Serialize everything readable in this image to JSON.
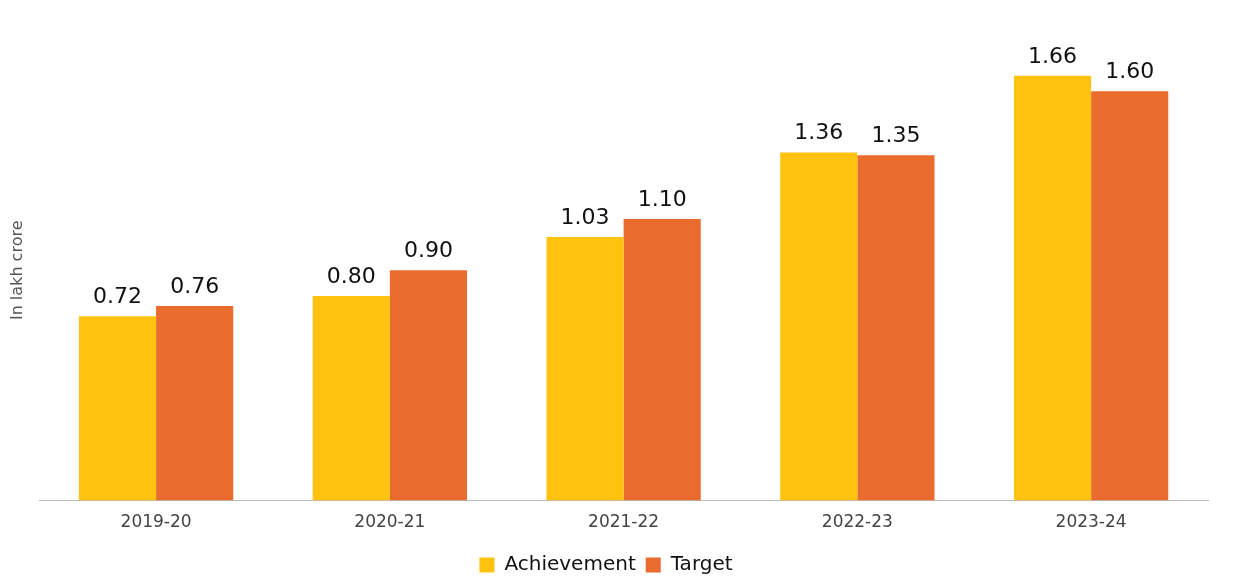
{
  "chart_data": {
    "type": "bar",
    "ylabel": "In lakh crore",
    "categories": [
      "2019-20",
      "2020-21",
      "2021-22",
      "2022-23",
      "2023-24"
    ],
    "series": [
      {
        "name": "Achievement",
        "color": "#ffc20e",
        "values": [
          0.72,
          0.8,
          1.03,
          1.36,
          1.66
        ],
        "value_labels": [
          "0.72",
          "0.80",
          "1.03",
          "1.36",
          "1.66"
        ]
      },
      {
        "name": "Target",
        "color": "#e96b2e",
        "values": [
          0.76,
          0.9,
          1.1,
          1.35,
          1.6
        ],
        "value_labels": [
          "0.76",
          "0.90",
          "1.10",
          "1.35",
          "1.60"
        ]
      }
    ],
    "legend": "bottom",
    "grid": false
  }
}
